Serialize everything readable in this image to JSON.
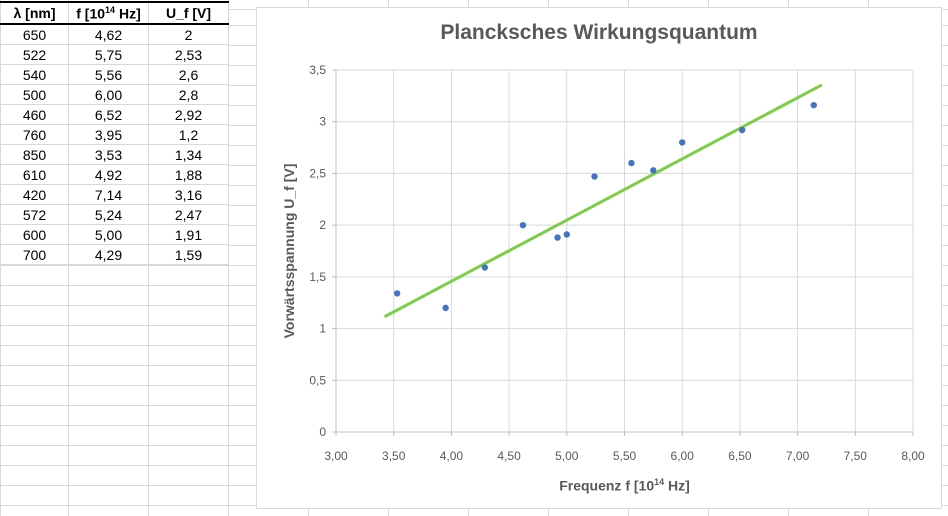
{
  "sheet": {
    "table": {
      "headers": [
        {
          "text": "λ [nm]"
        },
        {
          "pre": "f [10",
          "sup": "14",
          "post": " Hz]"
        },
        {
          "text": "U_f [V]"
        }
      ],
      "rows": [
        [
          "650",
          "4,62",
          "2"
        ],
        [
          "522",
          "5,75",
          "2,53"
        ],
        [
          "540",
          "5,56",
          "2,6"
        ],
        [
          "500",
          "6,00",
          "2,8"
        ],
        [
          "460",
          "6,52",
          "2,92"
        ],
        [
          "760",
          "3,95",
          "1,2"
        ],
        [
          "850",
          "3,53",
          "1,34"
        ],
        [
          "610",
          "4,92",
          "1,88"
        ],
        [
          "420",
          "7,14",
          "3,16"
        ],
        [
          "572",
          "5,24",
          "2,47"
        ],
        [
          "600",
          "5,00",
          "1,91"
        ],
        [
          "700",
          "4,29",
          "1,59"
        ]
      ]
    }
  },
  "chart_data": {
    "type": "scatter",
    "title": "Plancksches Wirkungsquantum",
    "xlabel": {
      "pre": "Frequenz f [10",
      "sup": "14",
      "post": " Hz]"
    },
    "ylabel": "Vorwärtsspannung U_f [V]",
    "xlim": [
      3.0,
      8.0
    ],
    "ylim": [
      0.0,
      3.5
    ],
    "x_ticks": [
      3.0,
      3.5,
      4.0,
      4.5,
      5.0,
      5.5,
      6.0,
      6.5,
      7.0,
      7.5,
      8.0
    ],
    "x_tick_labels": [
      "3,00",
      "3,50",
      "4,00",
      "4,50",
      "5,00",
      "5,50",
      "6,00",
      "6,50",
      "7,00",
      "7,50",
      "8,00"
    ],
    "y_ticks": [
      0,
      0.5,
      1.0,
      1.5,
      2.0,
      2.5,
      3.0,
      3.5
    ],
    "y_tick_labels": [
      "0",
      "0,5",
      "1",
      "1,5",
      "2",
      "2,5",
      "3",
      "3,5"
    ],
    "grid": true,
    "legend": "none",
    "points": [
      [
        4.62,
        2.0
      ],
      [
        5.75,
        2.53
      ],
      [
        5.56,
        2.6
      ],
      [
        6.0,
        2.8
      ],
      [
        6.52,
        2.92
      ],
      [
        3.95,
        1.2
      ],
      [
        3.53,
        1.34
      ],
      [
        4.92,
        1.88
      ],
      [
        7.14,
        3.16
      ],
      [
        5.24,
        2.47
      ],
      [
        5.0,
        1.91
      ],
      [
        4.29,
        1.59
      ]
    ],
    "trendline": {
      "x1": 3.43,
      "y1": 1.12,
      "x2": 7.2,
      "y2": 3.35
    },
    "colors": {
      "point": "#4472C4",
      "trendline": "#7CCE46",
      "gridline": "#D9D9D9",
      "axis_line": "#BFBFBF",
      "text": "#595959",
      "sheet_gridline": "#D9D9D9",
      "table_border": "#000000"
    }
  }
}
